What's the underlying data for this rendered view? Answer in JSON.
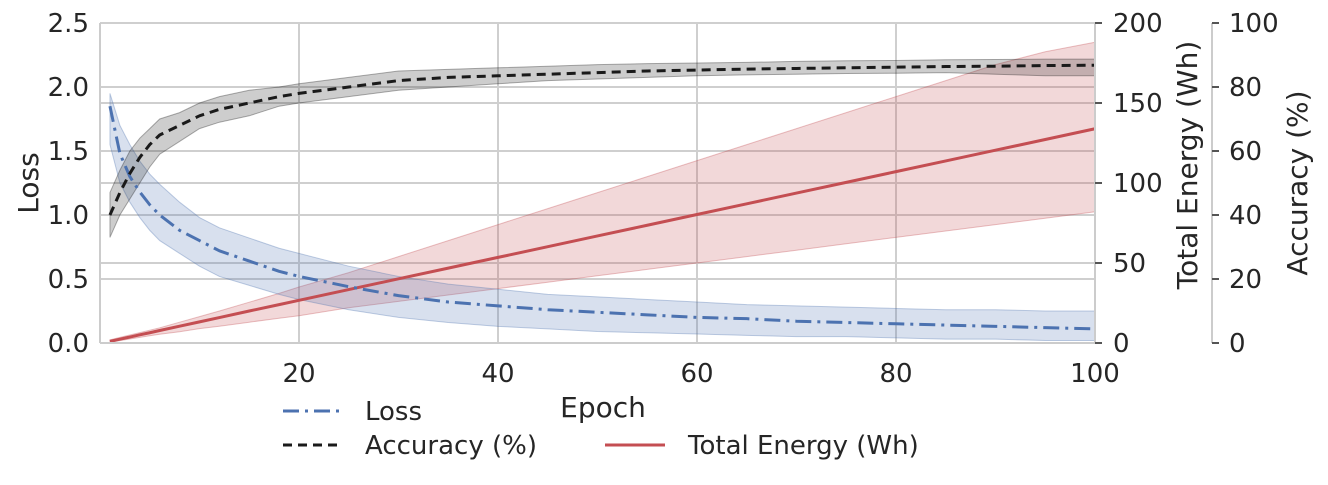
{
  "chart_data": {
    "type": "line",
    "x": [
      1,
      2,
      3,
      4,
      5,
      6,
      8,
      10,
      12,
      15,
      18,
      20,
      25,
      30,
      35,
      40,
      45,
      50,
      55,
      60,
      65,
      70,
      75,
      80,
      85,
      90,
      95,
      100
    ],
    "xlabel": "Epoch",
    "xlim": [
      0,
      100
    ],
    "xticks": [
      "20",
      "40",
      "60",
      "80",
      "100"
    ],
    "series": [
      {
        "name": "Loss",
        "axis": "left",
        "color": "#4c72b0",
        "style": "dashdot",
        "values": [
          1.85,
          1.48,
          1.3,
          1.18,
          1.08,
          1.0,
          0.88,
          0.8,
          0.72,
          0.64,
          0.56,
          0.52,
          0.44,
          0.37,
          0.32,
          0.29,
          0.26,
          0.24,
          0.22,
          0.2,
          0.19,
          0.17,
          0.16,
          0.15,
          0.14,
          0.13,
          0.12,
          0.11
        ],
        "lower": [
          1.55,
          1.25,
          1.1,
          0.98,
          0.88,
          0.8,
          0.7,
          0.6,
          0.52,
          0.45,
          0.38,
          0.34,
          0.26,
          0.2,
          0.16,
          0.13,
          0.11,
          0.09,
          0.08,
          0.07,
          0.06,
          0.05,
          0.05,
          0.04,
          0.03,
          0.03,
          0.02,
          0.02
        ],
        "upper": [
          1.95,
          1.7,
          1.55,
          1.42,
          1.32,
          1.24,
          1.1,
          0.98,
          0.9,
          0.82,
          0.74,
          0.7,
          0.6,
          0.52,
          0.46,
          0.42,
          0.38,
          0.36,
          0.34,
          0.32,
          0.3,
          0.29,
          0.28,
          0.27,
          0.26,
          0.26,
          0.25,
          0.25
        ]
      },
      {
        "name": "Accuracy (%)",
        "axis": "accuracy",
        "color": "#1a1a1a",
        "style": "dashed",
        "values": [
          40,
          47,
          53,
          58,
          62,
          65,
          68,
          71,
          73,
          75,
          77,
          78,
          80,
          82,
          83,
          83.5,
          84,
          84.5,
          85,
          85.3,
          85.6,
          85.8,
          86,
          86.2,
          86.4,
          86.5,
          86.7,
          86.8
        ],
        "lower": [
          33,
          40,
          45,
          50,
          55,
          59,
          63,
          67,
          69,
          71,
          74,
          75,
          77,
          79,
          80,
          81,
          82,
          82.5,
          83,
          83.5,
          83.8,
          84,
          84.2,
          84.3,
          84.5,
          84,
          83.5,
          83.5
        ],
        "upper": [
          47,
          54,
          60,
          64,
          67,
          70,
          72,
          75,
          77,
          79,
          80,
          81,
          83,
          85,
          85.5,
          86,
          86.5,
          87,
          87.3,
          87.5,
          87.7,
          88,
          88.2,
          88.3,
          88.5,
          88.6,
          88.7,
          88.7
        ]
      },
      {
        "name": "Total Energy (Wh)",
        "axis": "energy",
        "color": "#c44e52",
        "style": "solid",
        "values": [
          1,
          2.4,
          3.7,
          5.1,
          6.4,
          7.8,
          10.5,
          13.2,
          15.9,
          20,
          24,
          26.7,
          33.4,
          40.1,
          46.8,
          53.5,
          60.2,
          66.9,
          73.6,
          80.3,
          87,
          93.7,
          100.4,
          107.1,
          113.8,
          120.5,
          127.2,
          133.9
        ],
        "lower": [
          0.5,
          1.5,
          2.5,
          3.5,
          4.5,
          5.5,
          7,
          9,
          10.5,
          13,
          15.5,
          17,
          22,
          26,
          30,
          34,
          38,
          42,
          46,
          50,
          54,
          58,
          62,
          66,
          70,
          74,
          78,
          82
        ],
        "upper": [
          2,
          3.5,
          5,
          6.5,
          8,
          9.5,
          13,
          16.5,
          20,
          25.5,
          31,
          35,
          44,
          54,
          64,
          74,
          84,
          94,
          104,
          114,
          124,
          134,
          144,
          154,
          164,
          174,
          182,
          188
        ]
      }
    ],
    "axes": {
      "left": {
        "label": "Loss",
        "ylim": [
          0,
          2.5
        ],
        "ticks": [
          "0.0",
          "0.5",
          "1.0",
          "1.5",
          "2.0",
          "2.5"
        ]
      },
      "energy": {
        "label": "Total Energy (Wh)",
        "ylim": [
          0,
          200
        ],
        "ticks": [
          "0",
          "50",
          "100",
          "150",
          "200"
        ]
      },
      "accuracy": {
        "label": "Accuracy (%)",
        "ylim": [
          0,
          100
        ],
        "ticks": [
          "0",
          "20",
          "40",
          "60",
          "80",
          "100"
        ]
      }
    },
    "legend": {
      "placement": "below",
      "entries": [
        "Loss",
        "Accuracy (%)",
        "Total Energy (Wh)"
      ]
    },
    "grid": true
  }
}
